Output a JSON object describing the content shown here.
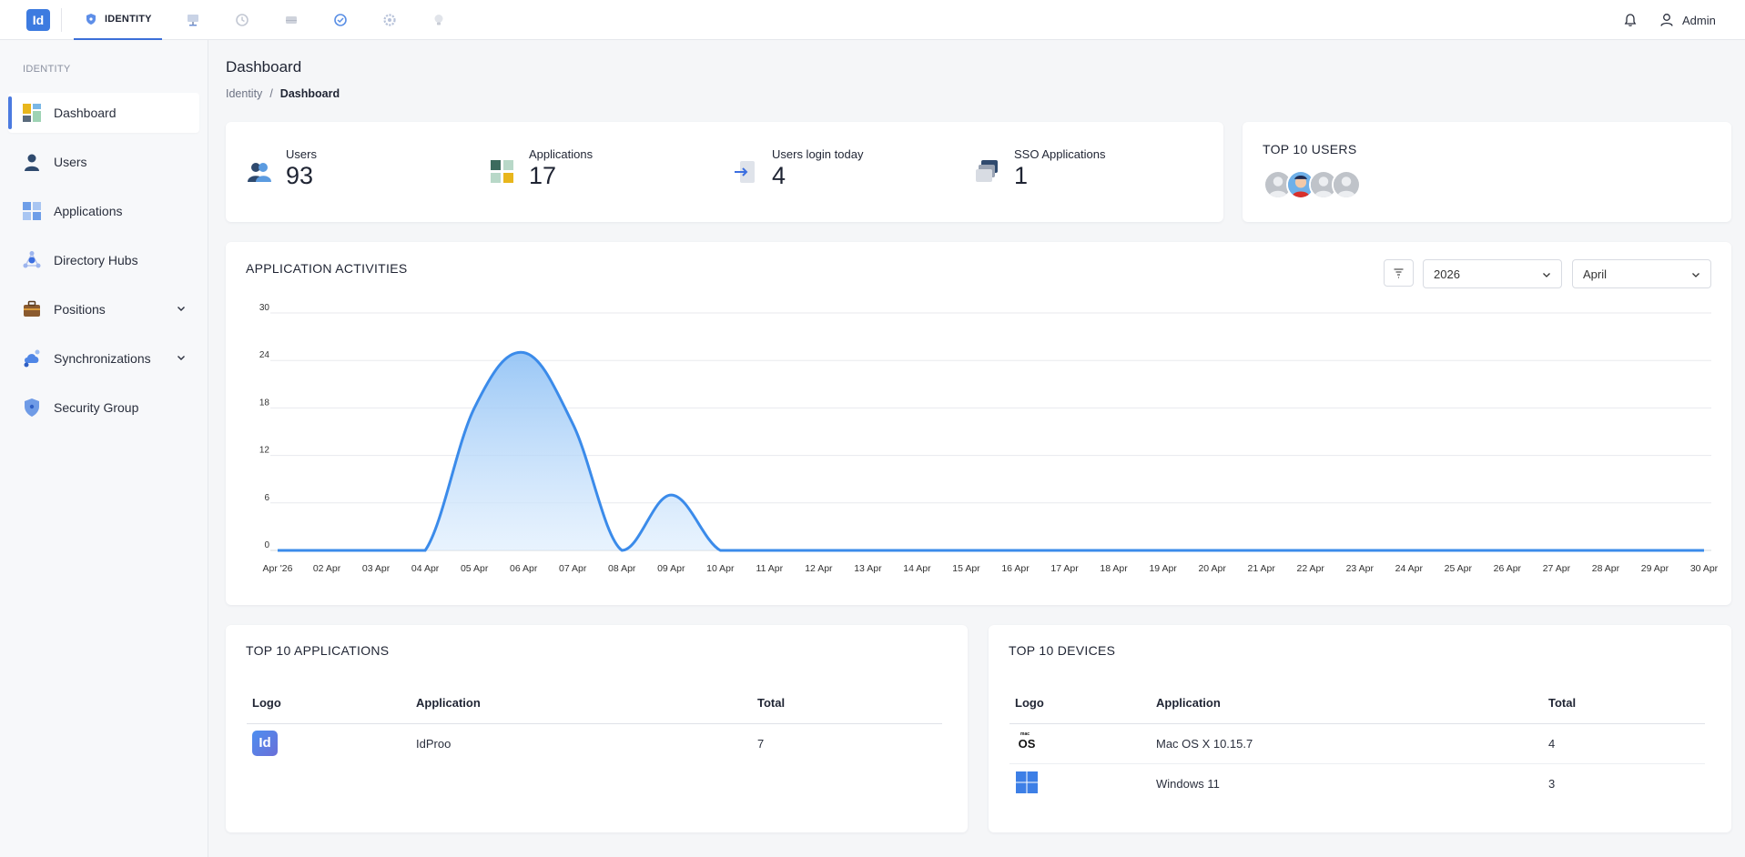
{
  "app": {
    "logo_text": "Id",
    "module_tab": "IDENTITY"
  },
  "header": {
    "user_name": "Admin"
  },
  "sidebar": {
    "section_label": "IDENTITY",
    "items": [
      {
        "label": "Dashboard"
      },
      {
        "label": "Users"
      },
      {
        "label": "Applications"
      },
      {
        "label": "Directory Hubs"
      },
      {
        "label": "Positions"
      },
      {
        "label": "Synchronizations"
      },
      {
        "label": "Security Group"
      }
    ]
  },
  "page": {
    "title": "Dashboard",
    "breadcrumb": [
      "Identity",
      "/",
      "Dashboard"
    ]
  },
  "stats": [
    {
      "label": "Users",
      "value": "93"
    },
    {
      "label": "Applications",
      "value": "17"
    },
    {
      "label": "Users login today",
      "value": "4"
    },
    {
      "label": "SSO Applications",
      "value": "1"
    }
  ],
  "top_users": {
    "title": "TOP 10 USERS"
  },
  "activities": {
    "title": "APPLICATION ACTIVITIES",
    "year_select": "2026",
    "month_select": "April"
  },
  "chart_data": {
    "type": "area",
    "ylim": [
      0,
      30
    ],
    "yticks": [
      "0",
      "6",
      "12",
      "18",
      "24",
      "30"
    ],
    "x": [
      "Apr '26",
      "02 Apr",
      "03 Apr",
      "04 Apr",
      "05 Apr",
      "06 Apr",
      "07 Apr",
      "08 Apr",
      "09 Apr",
      "10 Apr",
      "11 Apr",
      "12 Apr",
      "13 Apr",
      "14 Apr",
      "15 Apr",
      "16 Apr",
      "17 Apr",
      "18 Apr",
      "19 Apr",
      "20 Apr",
      "21 Apr",
      "22 Apr",
      "23 Apr",
      "24 Apr",
      "25 Apr",
      "26 Apr",
      "27 Apr",
      "28 Apr",
      "29 Apr",
      "30 Apr"
    ],
    "values": [
      0,
      0,
      0,
      0,
      18,
      25,
      16,
      0,
      7,
      0,
      0,
      0,
      0,
      0,
      0,
      0,
      0,
      0,
      0,
      0,
      0,
      0,
      0,
      0,
      0,
      0,
      0,
      0,
      0,
      0
    ],
    "color": "#3b8bea",
    "grid": true
  },
  "top_apps": {
    "title": "TOP 10 APPLICATIONS",
    "headers": [
      "Logo",
      "Application",
      "Total"
    ],
    "rows": [
      {
        "logo": "Id",
        "name": "IdProo",
        "total": "7"
      }
    ]
  },
  "top_devices": {
    "title": "TOP 10 DEVICES",
    "headers": [
      "Logo",
      "Application",
      "Total"
    ],
    "rows": [
      {
        "logo": "mac-os-icon",
        "logo_text": "OS",
        "name": "Mac OS X 10.15.7",
        "total": "4"
      },
      {
        "logo": "windows-icon",
        "name": "Windows 11",
        "total": "3"
      }
    ]
  }
}
